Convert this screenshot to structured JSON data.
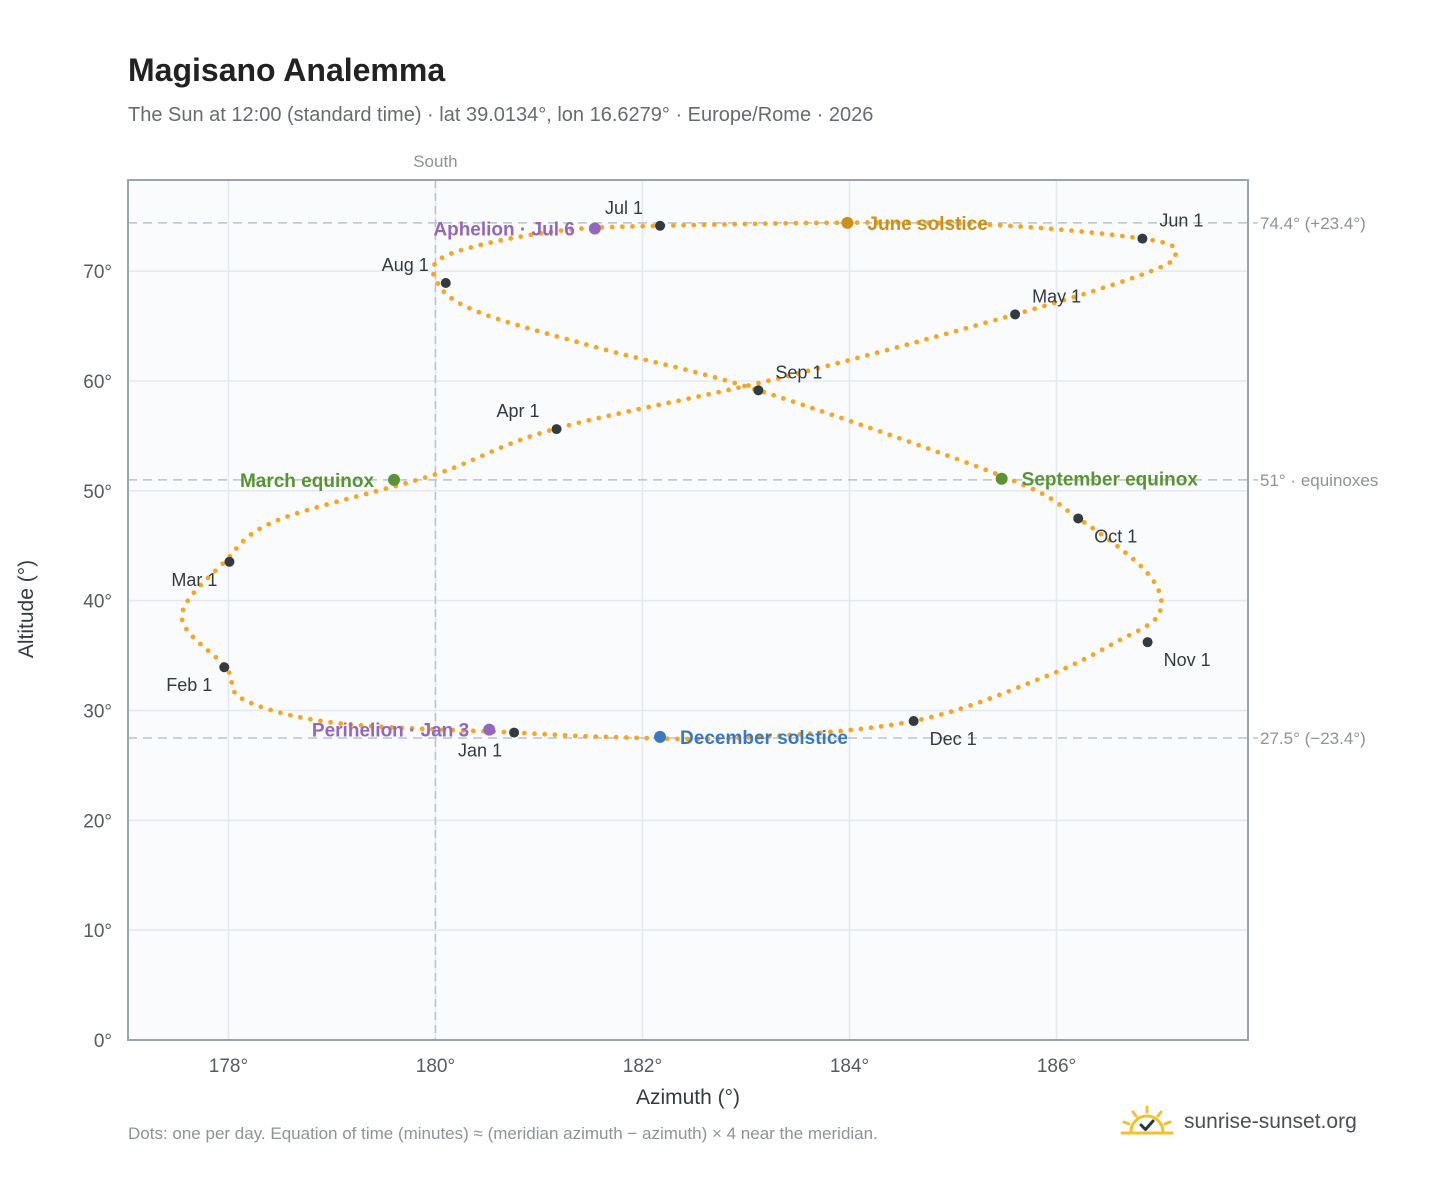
{
  "header": {
    "title": "Magisano Analemma",
    "subtitle": "The Sun at 12:00 (standard time) · lat 39.0134°, lon 16.6279° · Europe/Rome · 2026"
  },
  "footer": {
    "note": "Dots: one per day. Equation of time (minutes) ≈ (meridian azimuth − azimuth) × 4 near the meridian.",
    "brand": "sunrise-sunset.org"
  },
  "colors": {
    "path": "#f5a623",
    "month_marker": "#333a40",
    "solstice_june": "#c8921a",
    "solstice_december": "#3a78c2",
    "equinox": "#5a9432",
    "apsis": "#9467bd",
    "plot_bg": "#f9fbfd",
    "grid": "#e4e9ef",
    "ref_line": "#b9c3cd"
  },
  "chart_data": {
    "type": "scatter",
    "title": "Magisano Analemma",
    "xlabel": "Azimuth (°)",
    "ylabel": "Altitude (°)",
    "xlim": [
      177.03,
      187.85
    ],
    "ylim": [
      0,
      78.3
    ],
    "xticks": [
      178,
      180,
      182,
      184,
      186
    ],
    "xtick_labels": [
      "178°",
      "180°",
      "182°",
      "184°",
      "186°"
    ],
    "yticks": [
      0,
      10,
      20,
      30,
      40,
      50,
      60,
      70
    ],
    "ytick_labels": [
      "0°",
      "10°",
      "20°",
      "30°",
      "40°",
      "50°",
      "60°",
      "70°"
    ],
    "grid": true,
    "meridian": {
      "x": 180,
      "label": "South"
    },
    "reference_lines": [
      {
        "y": 74.4,
        "label": "74.4° (+23.4°)"
      },
      {
        "y": 51.0,
        "label": "51° · equinoxes"
      },
      {
        "y": 27.5,
        "label": "27.5° (−23.4°)"
      }
    ],
    "series": [
      {
        "name": "daily",
        "x": [
          180.76,
          179.05,
          178.15,
          177.98,
          177.55,
          177.96,
          178.47,
          180.0,
          181.15,
          183.34,
          185.6,
          186.83,
          187.15,
          186.83,
          184.98,
          182.17,
          181.06,
          180.1,
          180.02,
          180.41,
          181.58,
          183.12,
          185.51,
          186.21,
          186.88,
          186.99,
          186.57,
          185.87,
          184.62,
          182.93,
          181.64,
          180.76
        ],
        "y": [
          27.99,
          28.85,
          30.98,
          33.88,
          38.5,
          43.5,
          47.3,
          51.5,
          55.62,
          60.3,
          66.06,
          69.7,
          71.5,
          72.96,
          74.36,
          74.13,
          73.5,
          71.4,
          68.92,
          66.3,
          63.0,
          59.15,
          51.2,
          47.5,
          42.5,
          38.8,
          36.2,
          33.0,
          29.04,
          27.5,
          27.6,
          27.99
        ]
      }
    ],
    "month_markers": [
      {
        "label": "Jan 1",
        "x": 180.76,
        "y": 27.99,
        "pos": "below-left"
      },
      {
        "label": "Feb 1",
        "x": 177.96,
        "y": 33.94,
        "pos": "below-left"
      },
      {
        "label": "Mar 1",
        "x": 178.01,
        "y": 43.54,
        "pos": "below-left"
      },
      {
        "label": "Apr 1",
        "x": 181.17,
        "y": 55.62,
        "pos": "above-left"
      },
      {
        "label": "May 1",
        "x": 185.6,
        "y": 66.06,
        "pos": "above-right"
      },
      {
        "label": "Jun 1",
        "x": 186.83,
        "y": 72.96,
        "pos": "above-right"
      },
      {
        "label": "Jul 1",
        "x": 182.17,
        "y": 74.13,
        "pos": "above-left"
      },
      {
        "label": "Aug 1",
        "x": 180.1,
        "y": 68.92,
        "pos": "above-left"
      },
      {
        "label": "Sep 1",
        "x": 183.12,
        "y": 59.15,
        "pos": "above-right"
      },
      {
        "label": "Oct 1",
        "x": 186.21,
        "y": 47.48,
        "pos": "below-right"
      },
      {
        "label": "Nov 1",
        "x": 186.88,
        "y": 36.22,
        "pos": "below-right"
      },
      {
        "label": "Dec 1",
        "x": 184.62,
        "y": 29.04,
        "pos": "below-right"
      }
    ],
    "events": [
      {
        "label": "June solstice",
        "x": 183.98,
        "y": 74.4,
        "color": "#c8921a",
        "side": "right"
      },
      {
        "label": "December solstice",
        "x": 182.17,
        "y": 27.6,
        "color": "#3a78c2",
        "side": "right"
      },
      {
        "label": "March equinox",
        "x": 179.6,
        "y": 51.0,
        "color": "#5a9432",
        "side": "left"
      },
      {
        "label": "September equinox",
        "x": 185.47,
        "y": 51.1,
        "color": "#5a9432",
        "side": "right"
      },
      {
        "label": "Aphelion · Jul 6",
        "x": 181.54,
        "y": 73.88,
        "color": "#9467bd",
        "side": "left"
      },
      {
        "label": "Perihelion · Jan 3",
        "x": 180.52,
        "y": 28.26,
        "color": "#9467bd",
        "side": "left"
      }
    ]
  }
}
